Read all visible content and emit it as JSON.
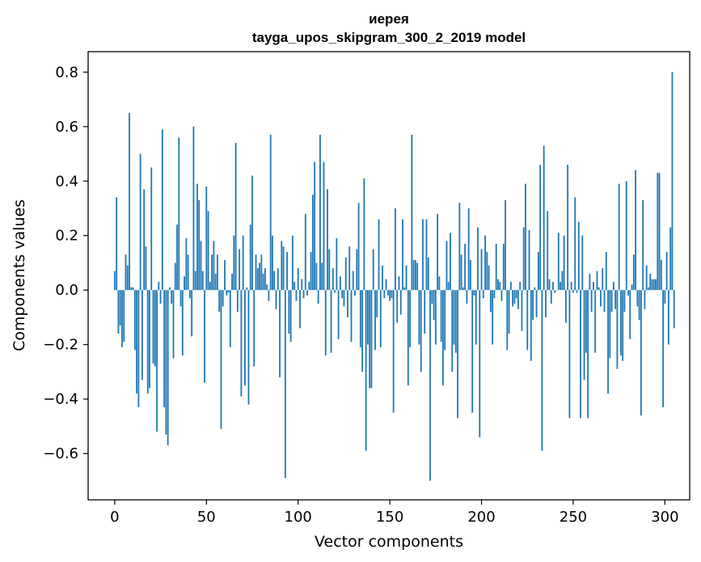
{
  "chart_data": {
    "type": "bar",
    "title_line1": "иерея",
    "title_line2": "tayga_upos_skipgram_300_2_2019 model",
    "xlabel": "Vector components",
    "ylabel": "Components values",
    "xlim": [
      -14.5,
      313.5
    ],
    "ylim": [
      -0.77,
      0.875
    ],
    "x_ticks": [
      0,
      50,
      100,
      150,
      200,
      250,
      300
    ],
    "x_tick_labels": [
      "0",
      "50",
      "100",
      "150",
      "200",
      "250",
      "300"
    ],
    "y_ticks": [
      -0.6,
      -0.4,
      -0.2,
      0.0,
      0.2,
      0.4,
      0.6,
      0.8
    ],
    "y_tick_labels": [
      "−0.6",
      "−0.4",
      "−0.2",
      "0.0",
      "0.2",
      "0.4",
      "0.6",
      "0.8"
    ],
    "bar_color": "#1f77b4",
    "values": [
      0.07,
      0.34,
      -0.16,
      -0.13,
      -0.21,
      -0.19,
      0.13,
      0.09,
      0.65,
      0.01,
      0.01,
      -0.22,
      -0.38,
      -0.43,
      0.5,
      -0.33,
      0.37,
      0.16,
      -0.38,
      -0.36,
      0.45,
      -0.27,
      -0.28,
      -0.52,
      0.03,
      -0.05,
      0.59,
      -0.43,
      -0.53,
      -0.57,
      0.01,
      -0.05,
      -0.25,
      0.1,
      0.24,
      0.56,
      -0.06,
      -0.24,
      0.05,
      0.19,
      0.13,
      -0.03,
      -0.17,
      0.6,
      0.07,
      0.39,
      0.33,
      0.18,
      0.07,
      -0.34,
      0.38,
      0.29,
      0.03,
      0.13,
      0.18,
      0.06,
      0.13,
      -0.08,
      -0.51,
      -0.06,
      0.11,
      -0.02,
      -0.01,
      -0.21,
      0.06,
      0.2,
      0.54,
      -0.08,
      0.15,
      -0.39,
      0.2,
      -0.35,
      0.01,
      -0.42,
      0.24,
      0.42,
      -0.28,
      0.13,
      0.08,
      0.1,
      0.13,
      0.06,
      0.08,
      0.02,
      -0.04,
      0.57,
      0.2,
      0.07,
      -0.07,
      0.08,
      -0.32,
      0.18,
      0.16,
      -0.69,
      0.14,
      -0.16,
      -0.19,
      0.2,
      0.03,
      -0.04,
      0.08,
      -0.14,
      0.04,
      -0.03,
      0.28,
      -0.02,
      0.03,
      0.14,
      0.35,
      0.47,
      0.1,
      -0.05,
      0.57,
      0.1,
      0.47,
      -0.24,
      0.37,
      0.15,
      -0.23,
      0.08,
      -0.01,
      0.19,
      -0.18,
      0.05,
      -0.03,
      -0.06,
      0.12,
      -0.1,
      0.16,
      -0.19,
      0.07,
      -0.02,
      0.15,
      0.32,
      -0.21,
      -0.3,
      0.41,
      -0.59,
      -0.2,
      -0.36,
      -0.36,
      0.15,
      -0.22,
      -0.1,
      0.26,
      -0.21,
      0.09,
      -0.03,
      0.04,
      -0.02,
      -0.04,
      -0.03,
      -0.45,
      0.3,
      -0.12,
      0.05,
      -0.09,
      0.26,
      0.01,
      0.09,
      -0.35,
      -0.21,
      0.57,
      0.11,
      0.11,
      0.1,
      -0.2,
      -0.3,
      0.26,
      -0.16,
      0.26,
      0.12,
      -0.7,
      -0.05,
      -0.11,
      -0.2,
      0.28,
      0.05,
      -0.19,
      -0.35,
      -0.22,
      0.18,
      0.03,
      0.21,
      -0.3,
      -0.2,
      -0.23,
      -0.47,
      0.32,
      0.13,
      0.01,
      0.17,
      -0.05,
      0.3,
      0.11,
      -0.45,
      -0.02,
      -0.2,
      0.23,
      -0.54,
      0.15,
      -0.03,
      0.2,
      0.14,
      0.09,
      -0.08,
      -0.2,
      -0.03,
      0.17,
      0.04,
      0.03,
      -0.04,
      0.17,
      0.33,
      -0.22,
      -0.16,
      0.03,
      -0.06,
      -0.05,
      -0.03,
      -0.07,
      0.03,
      -0.15,
      0.23,
      0.39,
      -0.22,
      0.22,
      -0.26,
      -0.11,
      0.01,
      -0.1,
      0.14,
      0.46,
      -0.59,
      0.53,
      -0.1,
      0.29,
      0.04,
      -0.05,
      0.03,
      -0.01,
      0.0,
      0.21,
      0.03,
      0.07,
      0.2,
      -0.12,
      0.46,
      -0.47,
      0.03,
      -0.01,
      0.34,
      -0.01,
      0.25,
      -0.47,
      0.2,
      -0.33,
      -0.23,
      -0.47,
      0.06,
      -0.08,
      0.03,
      -0.23,
      0.07,
      0.01,
      -0.06,
      0.08,
      -0.08,
      0.14,
      -0.38,
      -0.25,
      -0.08,
      0.03,
      -0.07,
      -0.29,
      0.39,
      -0.24,
      -0.26,
      -0.08,
      0.4,
      -0.02,
      -0.18,
      0.02,
      0.13,
      0.44,
      -0.06,
      -0.11,
      -0.46,
      0.33,
      -0.07,
      0.09,
      0.01,
      0.06,
      0.04,
      0.04,
      0.04,
      0.43,
      0.43,
      0.11,
      -0.43,
      -0.05,
      0.14,
      -0.2,
      0.23,
      0.8,
      -0.14
    ]
  }
}
